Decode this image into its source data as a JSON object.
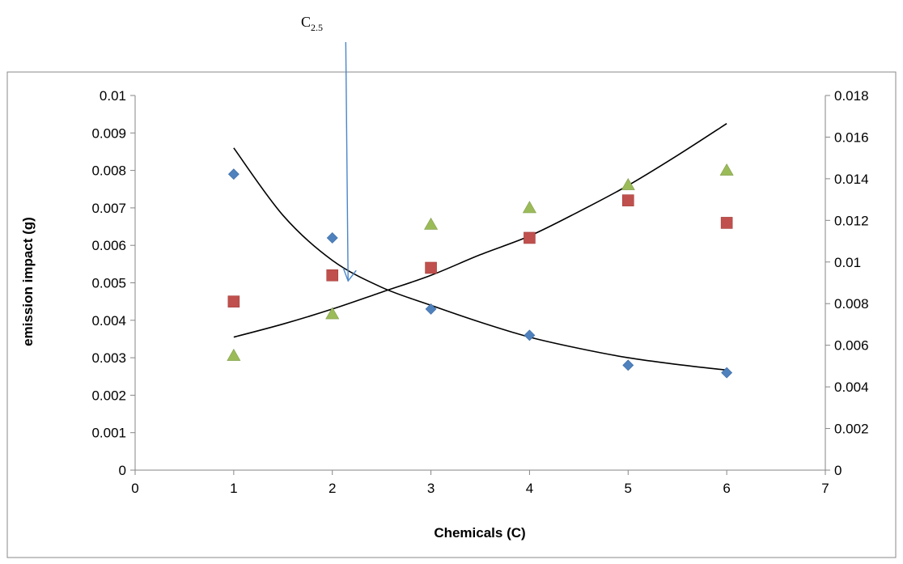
{
  "chart_data": {
    "type": "scatter",
    "title": "",
    "xlabel": "Chemicals (C)",
    "ylabel": "emission impact  (g)",
    "xlim": [
      0,
      7
    ],
    "ylim": [
      0,
      0.01
    ],
    "y2lim": [
      0,
      0.018
    ],
    "x_ticks": [
      "0",
      "1",
      "2",
      "3",
      "4",
      "5",
      "6",
      "7"
    ],
    "y_ticks": [
      "0",
      "0.001",
      "0.002",
      "0.003",
      "0.004",
      "0.005",
      "0.006",
      "0.007",
      "0.008",
      "0.009",
      "0.01"
    ],
    "y2_ticks": [
      "0",
      "0.002",
      "0.004",
      "0.006",
      "0.008",
      "0.01",
      "0.012",
      "0.014",
      "0.016",
      "0.018"
    ],
    "grid": false,
    "legend": "none",
    "series": [
      {
        "marker": "diamond",
        "color": "#4F81BD",
        "axis": "left",
        "x": [
          1,
          2,
          3,
          4,
          5,
          6
        ],
        "y": [
          0.0079,
          0.0062,
          0.0043,
          0.0036,
          0.0028,
          0.0026
        ]
      },
      {
        "marker": "square",
        "color": "#C0504D",
        "axis": "left",
        "x": [
          1,
          2,
          3,
          4,
          5,
          6
        ],
        "y": [
          0.0045,
          0.0052,
          0.0054,
          0.0062,
          0.0072,
          0.0066
        ]
      },
      {
        "marker": "triangle",
        "color": "#9BBB59",
        "axis": "right",
        "x": [
          1,
          2,
          3,
          4,
          5,
          6
        ],
        "y": [
          0.0055,
          0.0075,
          0.0118,
          0.0126,
          0.0137,
          0.0144
        ]
      }
    ],
    "trendlines": [
      {
        "type": "decreasing",
        "color": "#000000",
        "x": [
          1,
          1.5,
          2,
          2.5,
          3,
          3.5,
          4,
          4.5,
          5,
          5.5,
          6
        ],
        "y": [
          0.0086,
          0.0068,
          0.0056,
          0.00488,
          0.0044,
          0.00395,
          0.00355,
          0.00325,
          0.003,
          0.00282,
          0.00267
        ]
      },
      {
        "type": "increasing",
        "color": "#000000",
        "x": [
          1,
          1.5,
          2,
          2.5,
          3,
          3.5,
          4,
          4.5,
          5,
          5.5,
          6
        ],
        "y": [
          0.00355,
          0.0039,
          0.0043,
          0.00475,
          0.0052,
          0.00575,
          0.00625,
          0.0069,
          0.0076,
          0.0084,
          0.00925
        ]
      }
    ],
    "annotation": {
      "label": "C",
      "subscript": "2.5",
      "arrow_from": [
        2.12,
        0.0118
      ],
      "arrow_to": [
        2.16,
        0.00505
      ],
      "color": "#4A86C8"
    }
  }
}
